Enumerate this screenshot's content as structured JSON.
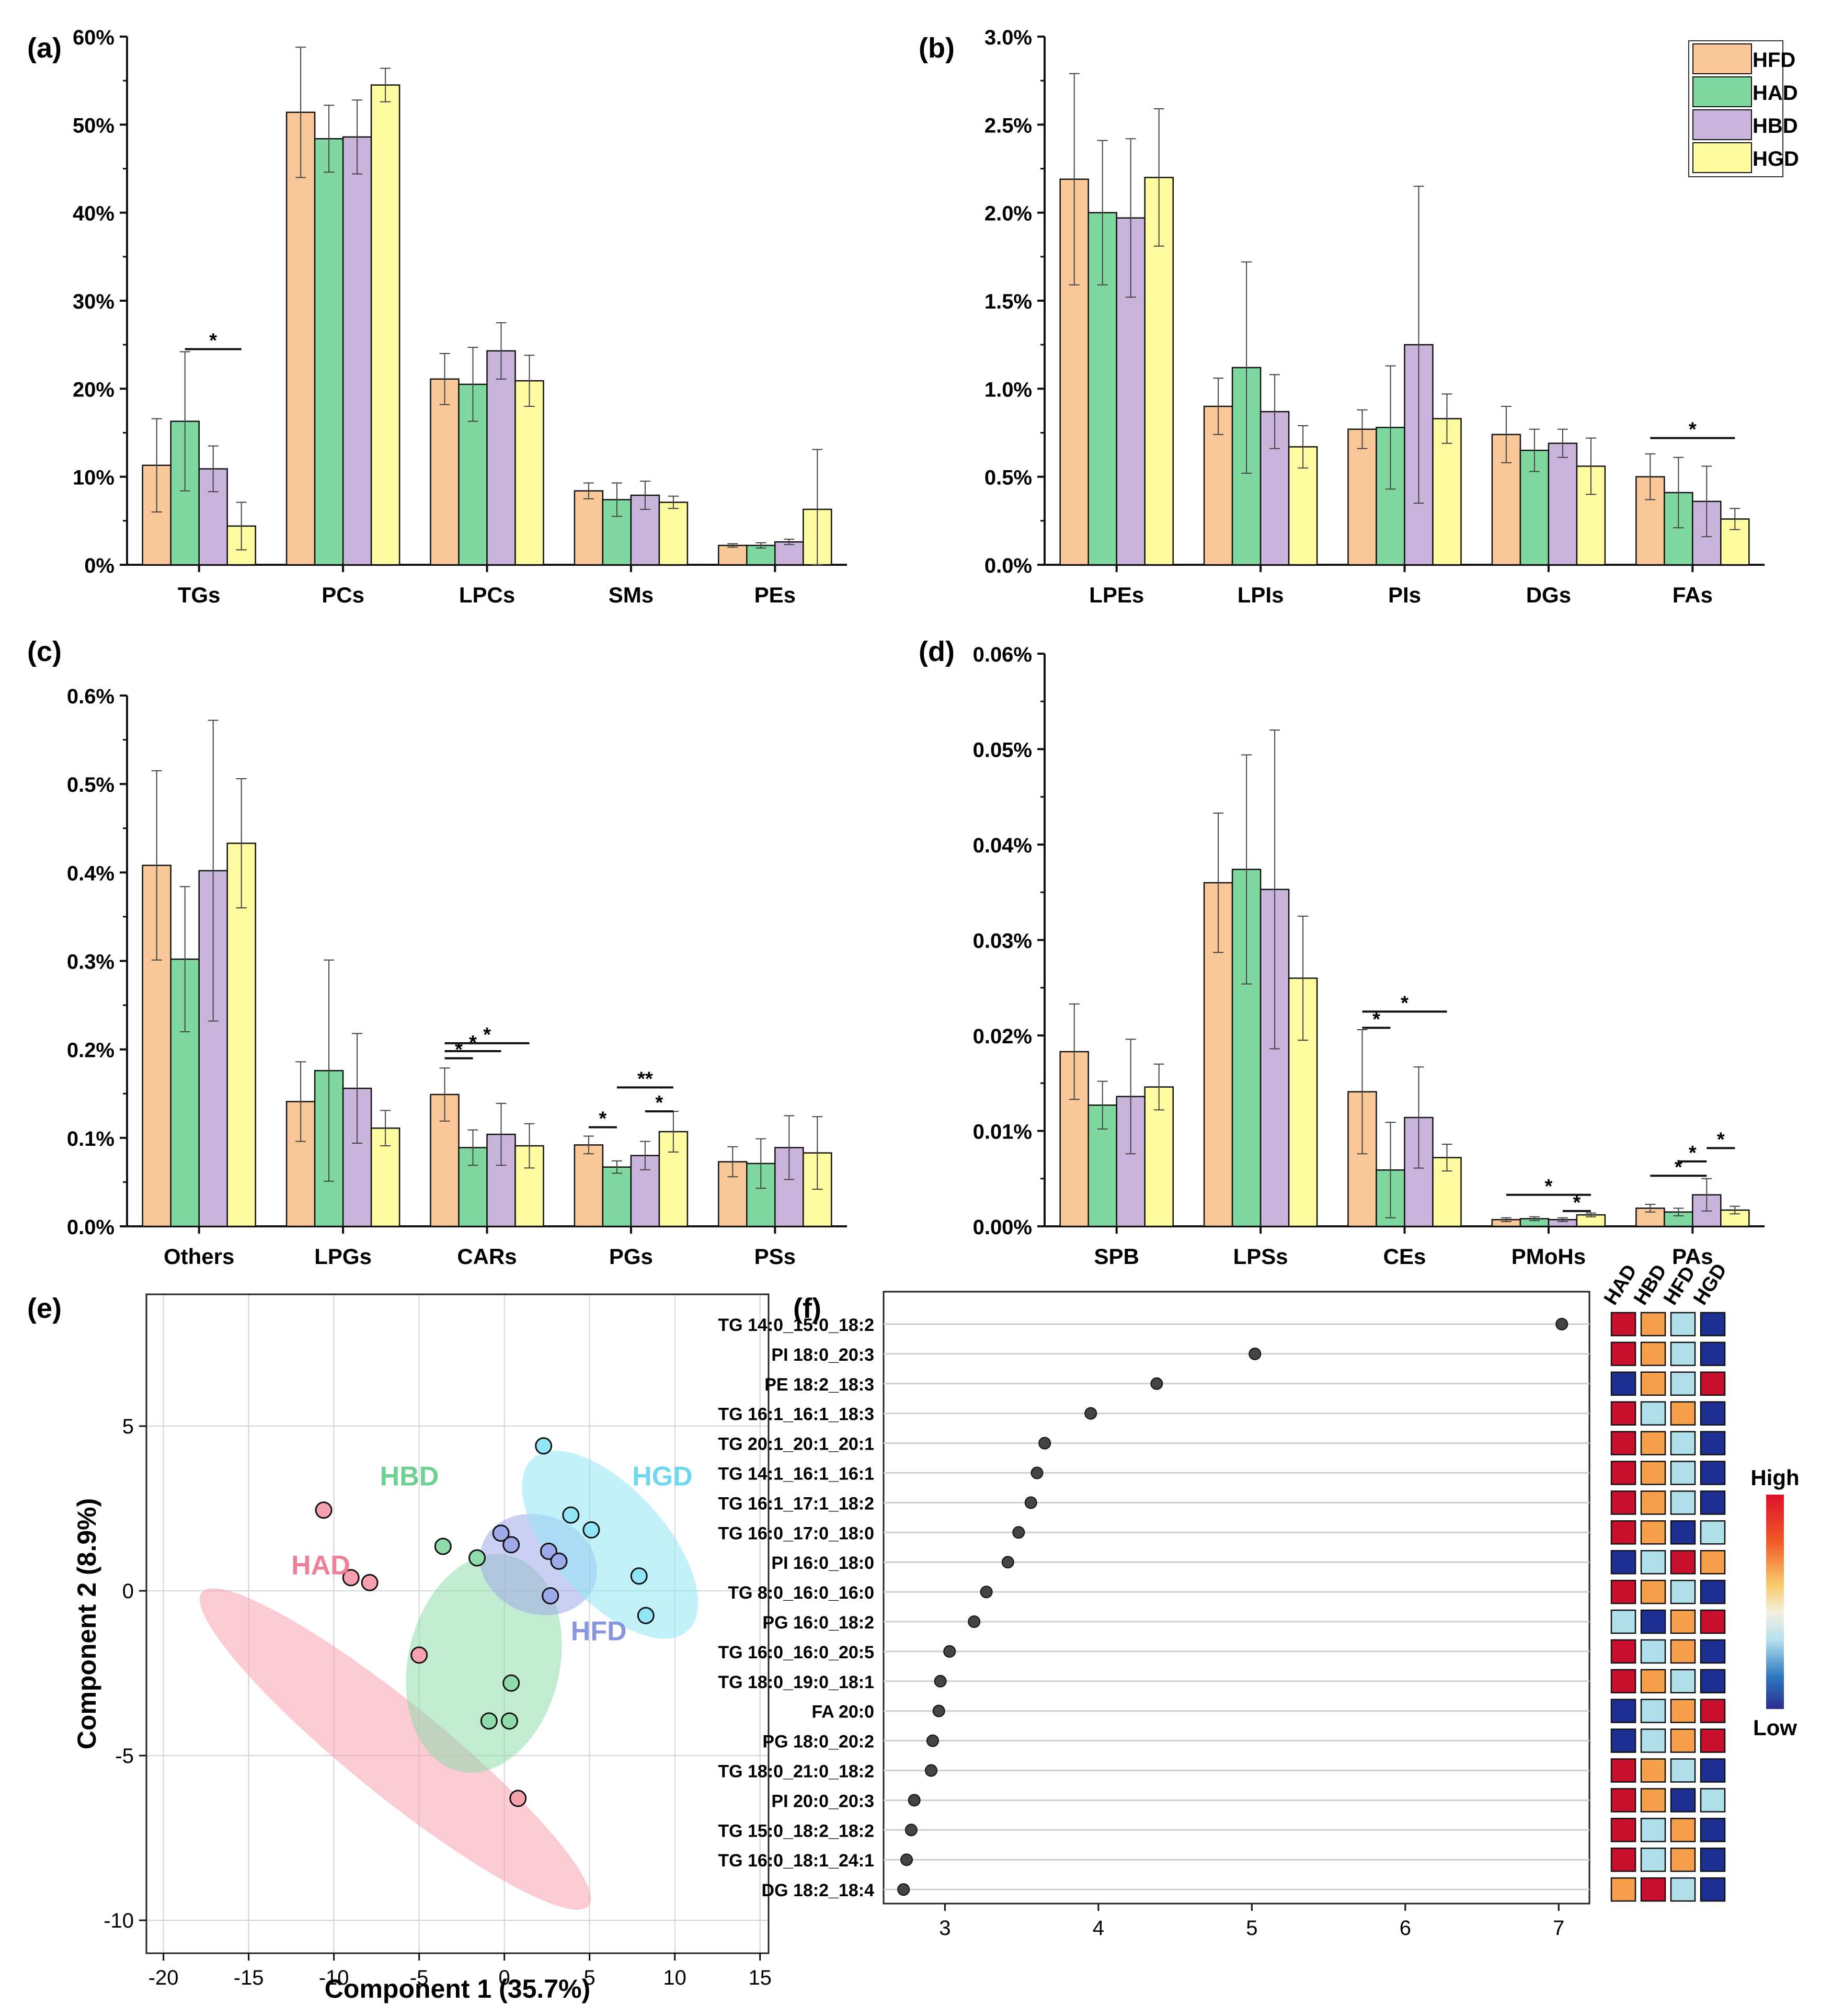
{
  "colors": {
    "HFD": "#FAC898",
    "HAD": "#7FD8A0",
    "HBD": "#C9B4DC",
    "HGD": "#FDFAA0",
    "stroke": "#111111"
  },
  "legend": [
    "HFD",
    "HAD",
    "HBD",
    "HGD"
  ],
  "chart_data": [
    {
      "type": "bar",
      "panel": "(a)",
      "categories": [
        "TGs",
        "PCs",
        "LPCs",
        "SMs",
        "PEs"
      ],
      "ylim": [
        0,
        60
      ],
      "yticks": [
        "0%",
        "10%",
        "20%",
        "30%",
        "40%",
        "50%",
        "60%"
      ],
      "series": [
        {
          "name": "HFD",
          "values": [
            11.3,
            51.4,
            21.1,
            8.4,
            2.2
          ],
          "err": [
            5.3,
            7.4,
            2.9,
            0.9,
            0.2
          ]
        },
        {
          "name": "HAD",
          "values": [
            16.3,
            48.4,
            20.5,
            7.4,
            2.2
          ],
          "err": [
            7.9,
            3.8,
            4.2,
            1.9,
            0.3
          ]
        },
        {
          "name": "HBD",
          "values": [
            10.9,
            48.6,
            24.3,
            7.9,
            2.6
          ],
          "err": [
            2.6,
            4.2,
            3.2,
            1.6,
            0.3
          ]
        },
        {
          "name": "HGD",
          "values": [
            4.4,
            54.5,
            20.9,
            7.1,
            6.3
          ],
          "err": [
            2.7,
            1.9,
            2.9,
            0.7,
            6.8
          ]
        }
      ],
      "sig": [
        {
          "cat": 0,
          "from": "HAD",
          "to": "HGD",
          "level": 24.5,
          "label": "*"
        }
      ]
    },
    {
      "type": "bar",
      "panel": "(b)",
      "categories": [
        "LPEs",
        "LPIs",
        "PIs",
        "DGs",
        "FAs"
      ],
      "ylim": [
        0,
        3.0
      ],
      "yticks": [
        "0.0%",
        "0.5%",
        "1.0%",
        "1.5%",
        "2.0%",
        "2.5%",
        "3.0%"
      ],
      "series": [
        {
          "name": "HFD",
          "values": [
            2.19,
            0.9,
            0.77,
            0.74,
            0.5
          ],
          "err": [
            0.6,
            0.16,
            0.11,
            0.16,
            0.13
          ]
        },
        {
          "name": "HAD",
          "values": [
            2.0,
            1.12,
            0.78,
            0.65,
            0.41
          ],
          "err": [
            0.41,
            0.6,
            0.35,
            0.12,
            0.2
          ]
        },
        {
          "name": "HBD",
          "values": [
            1.97,
            0.87,
            1.25,
            0.69,
            0.36
          ],
          "err": [
            0.45,
            0.21,
            0.9,
            0.08,
            0.2
          ]
        },
        {
          "name": "HGD",
          "values": [
            2.2,
            0.67,
            0.83,
            0.56,
            0.26
          ],
          "err": [
            0.39,
            0.12,
            0.14,
            0.16,
            0.06
          ]
        }
      ],
      "sig": [
        {
          "cat": 4,
          "from": "HFD",
          "to": "HGD",
          "level": 0.72,
          "label": "*"
        }
      ]
    },
    {
      "type": "bar",
      "panel": "(c)",
      "categories": [
        "Others",
        "LPGs",
        "CARs",
        "PGs",
        "PSs"
      ],
      "ylim": [
        0,
        0.6
      ],
      "yticks": [
        "0.0%",
        "0.1%",
        "0.2%",
        "0.3%",
        "0.4%",
        "0.5%",
        "0.6%"
      ],
      "series": [
        {
          "name": "HFD",
          "values": [
            0.408,
            0.141,
            0.149,
            0.092,
            0.073
          ],
          "err": [
            0.107,
            0.045,
            0.03,
            0.01,
            0.017
          ]
        },
        {
          "name": "HAD",
          "values": [
            0.302,
            0.176,
            0.089,
            0.067,
            0.071
          ],
          "err": [
            0.082,
            0.125,
            0.02,
            0.007,
            0.028
          ]
        },
        {
          "name": "HBD",
          "values": [
            0.402,
            0.156,
            0.104,
            0.08,
            0.089
          ],
          "err": [
            0.17,
            0.062,
            0.035,
            0.016,
            0.036
          ]
        },
        {
          "name": "HGD",
          "values": [
            0.433,
            0.111,
            0.091,
            0.107,
            0.083
          ],
          "err": [
            0.073,
            0.02,
            0.025,
            0.023,
            0.041
          ]
        }
      ],
      "sig": [
        {
          "cat": 2,
          "from": "HFD",
          "to": "HAD",
          "level": 0.19,
          "label": "*"
        },
        {
          "cat": 2,
          "from": "HFD",
          "to": "HBD",
          "level": 0.198,
          "label": "*"
        },
        {
          "cat": 2,
          "from": "HFD",
          "to": "HGD",
          "level": 0.207,
          "label": "*"
        },
        {
          "cat": 3,
          "from": "HFD",
          "to": "HAD",
          "level": 0.112,
          "label": "*"
        },
        {
          "cat": 3,
          "from": "HBD",
          "to": "HGD",
          "level": 0.13,
          "label": "*"
        },
        {
          "cat": 3,
          "from": "HAD",
          "to": "HGD",
          "level": 0.157,
          "label": "**"
        }
      ]
    },
    {
      "type": "bar",
      "panel": "(d)",
      "categories": [
        "SPB",
        "LPSs",
        "CEs",
        "PMoHs",
        "PAs"
      ],
      "ylim": [
        0,
        0.06
      ],
      "yticks": [
        "0.00%",
        "0.01%",
        "0.02%",
        "0.03%",
        "0.04%",
        "0.05%",
        "0.06%"
      ],
      "series": [
        {
          "name": "HFD",
          "values": [
            0.0183,
            0.036,
            0.0141,
            0.0007,
            0.0019
          ],
          "err": [
            0.005,
            0.0073,
            0.0065,
            0.0002,
            0.0004
          ]
        },
        {
          "name": "HAD",
          "values": [
            0.0127,
            0.0374,
            0.0059,
            0.0008,
            0.0015
          ],
          "err": [
            0.0025,
            0.012,
            0.005,
            0.0002,
            0.0004
          ]
        },
        {
          "name": "HBD",
          "values": [
            0.0136,
            0.0353,
            0.0114,
            0.0007,
            0.0033
          ],
          "err": [
            0.006,
            0.0167,
            0.0053,
            0.0002,
            0.0017
          ]
        },
        {
          "name": "HGD",
          "values": [
            0.0146,
            0.026,
            0.0072,
            0.0012,
            0.0017
          ],
          "err": [
            0.0024,
            0.0065,
            0.0014,
            0.0002,
            0.0004
          ]
        }
      ],
      "sig": [
        {
          "cat": 2,
          "from": "HFD",
          "to": "HAD",
          "level": 0.0208,
          "label": "*"
        },
        {
          "cat": 2,
          "from": "HFD",
          "to": "HGD",
          "level": 0.0225,
          "label": "*"
        },
        {
          "cat": 3,
          "from": "HBD",
          "to": "HGD",
          "level": 0.0016,
          "label": "*"
        },
        {
          "cat": 3,
          "from": "HFD",
          "to": "HGD",
          "level": 0.0033,
          "label": "*"
        },
        {
          "cat": 4,
          "from": "HFD",
          "to": "HBD",
          "level": 0.0053,
          "label": "*"
        },
        {
          "cat": 4,
          "from": "HAD",
          "to": "HBD",
          "level": 0.0068,
          "label": "*"
        },
        {
          "cat": 4,
          "from": "HBD",
          "to": "HGD",
          "level": 0.0082,
          "label": "*"
        }
      ]
    },
    {
      "type": "scatter",
      "panel": "(e)",
      "xlabel": "Component 1 (35.7%)",
      "ylabel": "Component 2 (8.9%)",
      "xlim": [
        -21,
        15.5
      ],
      "ylim": [
        -11,
        9
      ],
      "xticks": [
        -20,
        -15,
        -10,
        -5,
        0,
        5,
        10,
        15
      ],
      "yticks": [
        -10,
        -5,
        0,
        5
      ],
      "groups": [
        {
          "name": "HAD",
          "color": "#F7A1B0",
          "label_color": "#F08098",
          "label_at": [
            -12.5,
            0.5
          ],
          "points": [
            [
              -10.6,
              2.45
            ],
            [
              -9,
              0.4
            ],
            [
              -7.9,
              0.25
            ],
            [
              -5,
              -1.95
            ],
            [
              0.8,
              -6.3
            ]
          ],
          "ellipse": {
            "center": [
              -6.4,
              -4.8
            ],
            "rx": 14.6,
            "ry": 1.4,
            "angle_deg": -39
          }
        },
        {
          "name": "HBD",
          "color": "#8FDCAA",
          "label_color": "#6FD094",
          "label_at": [
            -7.3,
            3.2
          ],
          "points": [
            [
              -3.6,
              1.35
            ],
            [
              -1.6,
              1
            ],
            [
              0.4,
              -2.8
            ],
            [
              -0.9,
              -3.95
            ],
            [
              0.3,
              -3.95
            ]
          ],
          "ellipse": {
            "center": [
              -1.2,
              -2.2
            ],
            "rx": 6.5,
            "ry": 2.3,
            "angle_deg": 77
          }
        },
        {
          "name": "HFD",
          "color": "#9EAAE8",
          "label_color": "#8896E0",
          "label_at": [
            3.9,
            -1.5
          ],
          "points": [
            [
              -0.2,
              1.75
            ],
            [
              0.4,
              1.4
            ],
            [
              2.6,
              1.2
            ],
            [
              3.2,
              0.9
            ],
            [
              2.7,
              -0.15
            ]
          ],
          "ellipse": {
            "center": [
              2,
              0.8
            ],
            "rx": 3.5,
            "ry": 1.5,
            "angle_deg": -20
          }
        },
        {
          "name": "HGD",
          "color": "#90E6F4",
          "label_color": "#6FD8EE",
          "label_at": [
            7.5,
            3.2
          ],
          "points": [
            [
              2.3,
              4.4
            ],
            [
              3.9,
              2.3
            ],
            [
              5.1,
              1.85
            ],
            [
              7.9,
              0.45
            ],
            [
              8.3,
              -0.75
            ]
          ],
          "ellipse": {
            "center": [
              6.2,
              1.4
            ],
            "rx": 6.8,
            "ry": 1.7,
            "angle_deg": -48
          }
        }
      ]
    },
    {
      "type": "dot",
      "panel": "(f)",
      "xlim": [
        2.6,
        7.2
      ],
      "xticks": [
        3,
        4,
        5,
        6,
        7
      ],
      "heat_cols": [
        "HAD",
        "HBD",
        "HFD",
        "HGD"
      ],
      "heat_scale": {
        "high": "High",
        "low": "Low"
      },
      "heat_palette": {
        "red": "#C8102E",
        "orange": "#F6A04B",
        "light": "#AEDFEB",
        "blue": "#1E2F93"
      },
      "rows": [
        {
          "label": "TG 14:0_15:0_18:2",
          "value": 7.02,
          "heat": [
            "red",
            "orange",
            "light",
            "blue"
          ]
        },
        {
          "label": "PI 18:0_20:3",
          "value": 5.02,
          "heat": [
            "red",
            "orange",
            "light",
            "blue"
          ]
        },
        {
          "label": "PE 18:2_18:3",
          "value": 4.38,
          "heat": [
            "blue",
            "orange",
            "light",
            "red"
          ]
        },
        {
          "label": "TG 16:1_16:1_18:3",
          "value": 3.95,
          "heat": [
            "red",
            "light",
            "orange",
            "blue"
          ]
        },
        {
          "label": "TG 20:1_20:1_20:1",
          "value": 3.65,
          "heat": [
            "red",
            "orange",
            "light",
            "blue"
          ]
        },
        {
          "label": "TG 14:1_16:1_16:1",
          "value": 3.6,
          "heat": [
            "red",
            "orange",
            "light",
            "blue"
          ]
        },
        {
          "label": "TG 16:1_17:1_18:2",
          "value": 3.56,
          "heat": [
            "red",
            "orange",
            "light",
            "blue"
          ]
        },
        {
          "label": "TG 16:0_17:0_18:0",
          "value": 3.48,
          "heat": [
            "red",
            "orange",
            "blue",
            "light"
          ]
        },
        {
          "label": "PI 16:0_18:0",
          "value": 3.41,
          "heat": [
            "blue",
            "light",
            "red",
            "orange"
          ]
        },
        {
          "label": "TG 8:0_16:0_16:0",
          "value": 3.27,
          "heat": [
            "red",
            "orange",
            "light",
            "blue"
          ]
        },
        {
          "label": "PG 16:0_18:2",
          "value": 3.19,
          "heat": [
            "light",
            "blue",
            "orange",
            "red"
          ]
        },
        {
          "label": "TG 16:0_16:0_20:5",
          "value": 3.03,
          "heat": [
            "red",
            "light",
            "orange",
            "blue"
          ]
        },
        {
          "label": "TG 18:0_19:0_18:1",
          "value": 2.97,
          "heat": [
            "red",
            "orange",
            "light",
            "blue"
          ]
        },
        {
          "label": "FA 20:0",
          "value": 2.96,
          "heat": [
            "blue",
            "light",
            "orange",
            "red"
          ]
        },
        {
          "label": "PG 18:0_20:2",
          "value": 2.92,
          "heat": [
            "blue",
            "light",
            "orange",
            "red"
          ]
        },
        {
          "label": "TG 18:0_21:0_18:2",
          "value": 2.91,
          "heat": [
            "red",
            "orange",
            "light",
            "blue"
          ]
        },
        {
          "label": "PI 20:0_20:3",
          "value": 2.8,
          "heat": [
            "red",
            "orange",
            "blue",
            "light"
          ]
        },
        {
          "label": "TG 15:0_18:2_18:2",
          "value": 2.78,
          "heat": [
            "red",
            "light",
            "orange",
            "blue"
          ]
        },
        {
          "label": "TG 16:0_18:1_24:1",
          "value": 2.75,
          "heat": [
            "red",
            "light",
            "orange",
            "blue"
          ]
        },
        {
          "label": "DG 18:2_18:4",
          "value": 2.73,
          "heat": [
            "orange",
            "red",
            "light",
            "blue"
          ]
        }
      ]
    }
  ]
}
